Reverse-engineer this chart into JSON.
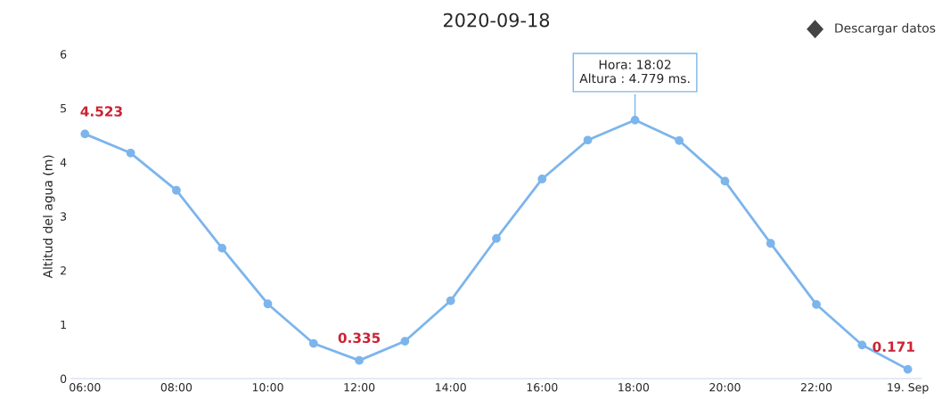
{
  "chart_data": {
    "type": "line",
    "title": "2020-09-18",
    "ylabel": "Altitud del agua (m)",
    "x": [
      6,
      7,
      8,
      9,
      10,
      11,
      12,
      13,
      14,
      15,
      16,
      17,
      18.033,
      19,
      20,
      21,
      22,
      23,
      24
    ],
    "series": [
      {
        "color": "#7cb5ec",
        "values": [
          4.523,
          4.17,
          3.48,
          2.41,
          1.38,
          0.65,
          0.335,
          0.69,
          1.44,
          2.59,
          3.69,
          4.41,
          4.779,
          4.4,
          3.65,
          2.5,
          1.37,
          0.62,
          0.171
        ],
        "value_labels": [
          "4.523",
          null,
          null,
          null,
          null,
          null,
          "0.335",
          null,
          null,
          null,
          null,
          null,
          null,
          null,
          null,
          null,
          null,
          null,
          "0.171"
        ]
      }
    ],
    "xlim": [
      5.7,
      24.3
    ],
    "xticks": [
      {
        "value": 6,
        "label": "06:00"
      },
      {
        "value": 8,
        "label": "08:00"
      },
      {
        "value": 10,
        "label": "10:00"
      },
      {
        "value": 12,
        "label": "12:00"
      },
      {
        "value": 14,
        "label": "14:00"
      },
      {
        "value": 16,
        "label": "16:00"
      },
      {
        "value": 18,
        "label": "18:00"
      },
      {
        "value": 20,
        "label": "20:00"
      },
      {
        "value": 22,
        "label": "22:00"
      },
      {
        "value": 24,
        "label": "19. Sep"
      }
    ],
    "ylim": [
      0,
      6
    ],
    "yticks": [
      0,
      1,
      2,
      3,
      4,
      5,
      6
    ],
    "grid": false,
    "marker": "circle",
    "line_style": "solid",
    "annotations": [
      {
        "text": "Hora: 18:02\nAltura : 4.779 ms.",
        "x": 18.033,
        "y": 4.779
      },
      "Descargar datos"
    ]
  }
}
